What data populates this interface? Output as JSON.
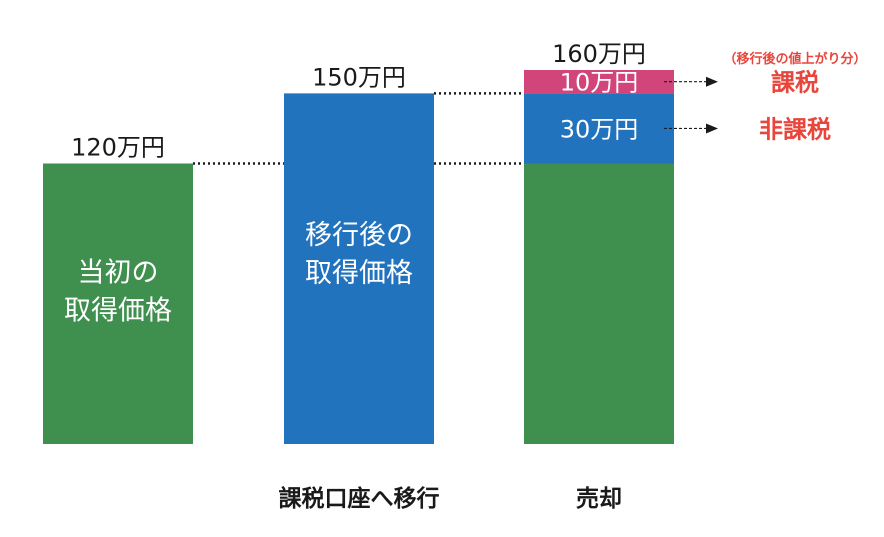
{
  "chart_data": {
    "type": "bar",
    "stacked": true,
    "unit": "万円",
    "ylim": [
      0,
      160
    ],
    "categories": [
      "",
      "課税口座へ移行",
      "売却"
    ],
    "bars": [
      {
        "total": 120,
        "total_label": "120万円",
        "inner_label": [
          "当初の",
          "取得価格"
        ],
        "segments": [
          {
            "value": 120,
            "color": "#3f8f4f",
            "label": ""
          }
        ]
      },
      {
        "total": 150,
        "total_label": "150万円",
        "inner_label": [
          "移行後の",
          "取得価格"
        ],
        "segments": [
          {
            "value": 150,
            "color": "#2173bd",
            "label": ""
          }
        ]
      },
      {
        "total": 160,
        "total_label": "160万円",
        "inner_label": [],
        "segments": [
          {
            "value": 120,
            "color": "#3f8f4f",
            "label": ""
          },
          {
            "value": 30,
            "color": "#2173bd",
            "label": "30万円",
            "tax": "非課税"
          },
          {
            "value": 10,
            "color": "#d1457b",
            "label": "10万円",
            "tax": "課税",
            "note": "（移行後の値上がり分）"
          }
        ]
      }
    ],
    "tax_color": "#e8463c"
  }
}
